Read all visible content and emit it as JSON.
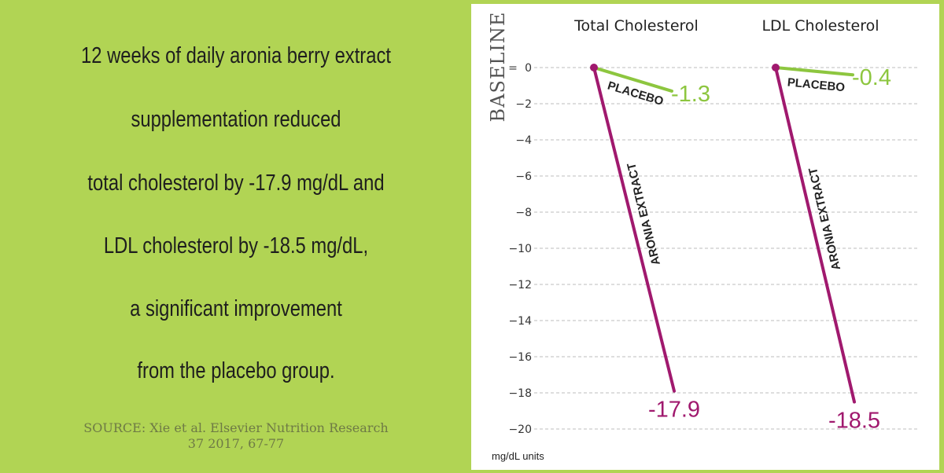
{
  "headline": [
    "12 weeks of daily aronia berry extract",
    "supplementation reduced",
    "total cholesterol by -17.9 mg/dL and",
    "LDL cholesterol by -18.5 mg/dL,",
    "a significant improvement",
    "from the placebo group."
  ],
  "source": [
    "SOURCE: Xie et al. Elsevier Nutrition Research",
    "37 2017, 67-77"
  ],
  "colors": {
    "background_green": "#b1d454",
    "placebo_green": "#8dc63f",
    "aronia_magenta": "#a0196e",
    "grid_gray": "#bdbdbd",
    "text_dark": "#1e1e1e"
  },
  "chart_data": {
    "type": "line",
    "y_axis_title": "BASELINE",
    "y_unit_label": "mg/dL units",
    "baseline_tick_prefix": "=",
    "ylim": [
      -20,
      0
    ],
    "yticks": [
      0,
      -2,
      -4,
      -6,
      -8,
      -10,
      -12,
      -14,
      -16,
      -18,
      -20
    ],
    "ytick_labels": [
      "0",
      "−2",
      "−4",
      "−6",
      "−8",
      "−10",
      "−12",
      "−14",
      "−16",
      "−18",
      "−20"
    ],
    "grid": true,
    "panels": [
      {
        "title": "Total Cholesterol",
        "series": [
          {
            "name": "PLACEBO",
            "start": 0,
            "end": -1.3,
            "end_label": "-1.3"
          },
          {
            "name": "ARONIA EXTRACT",
            "start": 0,
            "end": -17.9,
            "end_label": "-17.9"
          }
        ]
      },
      {
        "title": "LDL Cholesterol",
        "series": [
          {
            "name": "PLACEBO",
            "start": 0,
            "end": -0.4,
            "end_label": "-0.4"
          },
          {
            "name": "ARONIA EXTRACT",
            "start": 0,
            "end": -18.5,
            "end_label": "-18.5"
          }
        ]
      }
    ]
  }
}
